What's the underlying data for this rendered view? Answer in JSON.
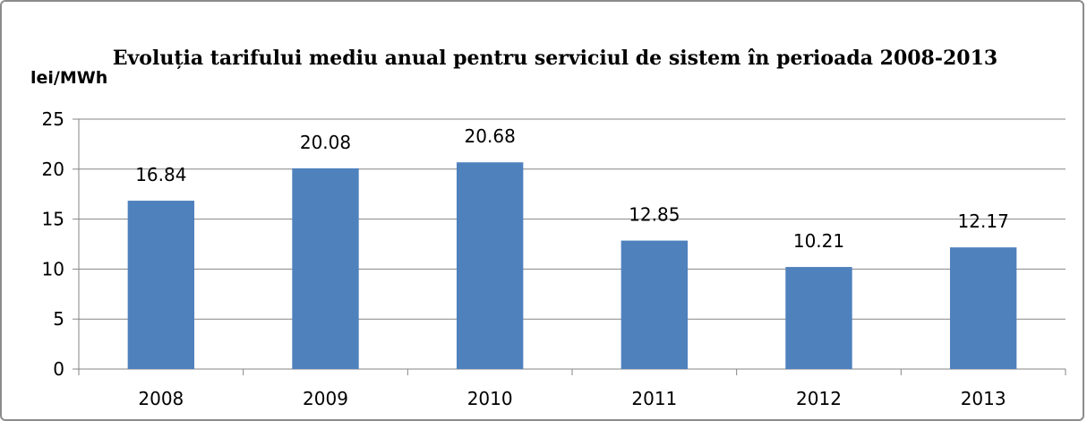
{
  "chart_data": {
    "type": "bar",
    "title": "Evoluția tarifului mediu anual pentru serviciul de sistem în perioada 2008-2013",
    "ylabel": "lei/MWh",
    "xlabel": "",
    "categories": [
      "2008",
      "2009",
      "2010",
      "2011",
      "2012",
      "2013"
    ],
    "values": [
      16.84,
      20.08,
      20.68,
      12.85,
      10.21,
      12.17
    ],
    "data_labels": [
      "16.84",
      "20.08",
      "20.68",
      "12.85",
      "10.21",
      "12.17"
    ],
    "ylim": [
      0,
      25
    ],
    "yticks": [
      0,
      5,
      10,
      15,
      20,
      25
    ],
    "grid": true,
    "legend": "none",
    "bar_color": "#4f81bd",
    "grid_color": "#868686"
  }
}
